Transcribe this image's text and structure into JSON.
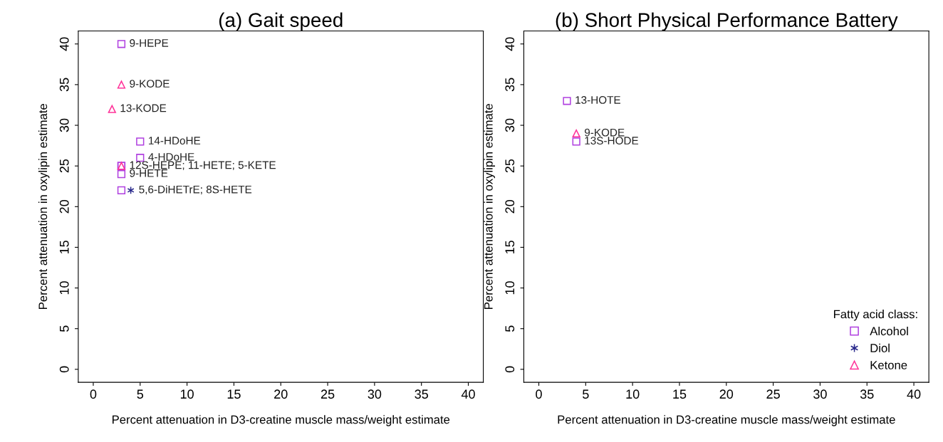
{
  "chart_data": [
    {
      "type": "scatter",
      "title": "(a) Gait speed",
      "xlabel": "Percent attenuation in D3-creatine muscle mass/weight estimate",
      "ylabel": "Percent attenuation in oxylipin estimate",
      "xlim": [
        -1.6,
        41.6
      ],
      "ylim": [
        -1.6,
        41.6
      ],
      "xticks": [
        0,
        5,
        10,
        15,
        20,
        25,
        30,
        35,
        40
      ],
      "yticks": [
        0,
        5,
        10,
        15,
        20,
        25,
        30,
        35,
        40
      ],
      "grid": false,
      "legend": false,
      "series": [
        {
          "color": "#b040e0",
          "marker": "square",
          "x": [
            3,
            5,
            5,
            3,
            3,
            3,
            3
          ],
          "values": [
            40,
            28,
            26,
            25,
            25,
            24,
            22
          ]
        },
        {
          "color": "#2a2a8c",
          "marker": "cross",
          "x": [
            4
          ],
          "values": [
            22
          ]
        },
        {
          "color": "#ff3399",
          "marker": "triangle",
          "x": [
            3,
            2,
            3
          ],
          "values": [
            35,
            32,
            25
          ]
        }
      ],
      "annotations": [
        {
          "text": "9-HEPE",
          "x": 3,
          "y": 40
        },
        {
          "text": "9-KODE",
          "x": 3,
          "y": 35
        },
        {
          "text": "13-KODE",
          "x": 2,
          "y": 32
        },
        {
          "text": "14-HDoHE",
          "x": 5,
          "y": 28
        },
        {
          "text": "4-HDoHE",
          "x": 5,
          "y": 26
        },
        {
          "text": "12S-HEPE; 11-HETE; 5-KETE",
          "x": 3,
          "y": 25
        },
        {
          "text": "9-HETE",
          "x": 3,
          "y": 24
        },
        {
          "text": "5,6-DiHETrE; 8S-HETE",
          "x": 4,
          "y": 22
        }
      ]
    },
    {
      "type": "scatter",
      "title": "(b) Short Physical Performance Battery",
      "xlabel": "Percent attenuation in D3-creatine muscle mass/weight estimate",
      "ylabel": "Percent attenuation in oxylipin estimate",
      "xlim": [
        -1.6,
        41.6
      ],
      "ylim": [
        -1.6,
        41.6
      ],
      "xticks": [
        0,
        5,
        10,
        15,
        20,
        25,
        30,
        35,
        40
      ],
      "yticks": [
        0,
        5,
        10,
        15,
        20,
        25,
        30,
        35,
        40
      ],
      "grid": false,
      "legend": "bottom right",
      "legend_title": "Fatty acid class:",
      "series": [
        {
          "name": "Alcohol",
          "color": "#b040e0",
          "marker": "square",
          "x": [
            3,
            4
          ],
          "values": [
            33,
            28
          ]
        },
        {
          "name": "Diol",
          "color": "#2a2a8c",
          "marker": "cross"
        },
        {
          "name": "Ketone",
          "color": "#ff3399",
          "marker": "triangle",
          "x": [
            4
          ],
          "values": [
            29
          ]
        }
      ],
      "annotations": [
        {
          "text": "13-HOTE",
          "x": 3,
          "y": 33
        },
        {
          "text": "9-KODE",
          "x": 4,
          "y": 29
        },
        {
          "text": "13S-HODE",
          "x": 4,
          "y": 28
        }
      ]
    }
  ]
}
